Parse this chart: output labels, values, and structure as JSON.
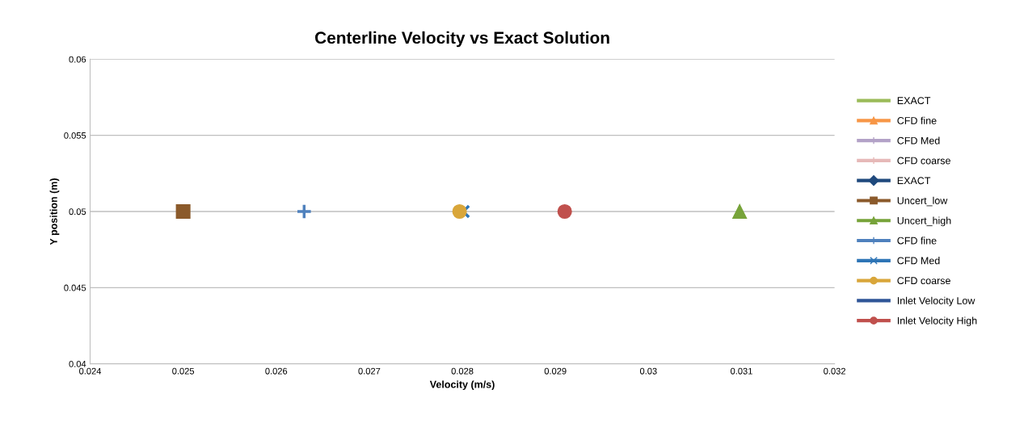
{
  "chart_data": {
    "type": "scatter",
    "title": "Centerline Velocity vs Exact Solution",
    "xlabel": "Velocity (m/s)",
    "ylabel": "Y position (m)",
    "xlim": [
      0.024,
      0.032
    ],
    "xticks": [
      0.024,
      0.025,
      0.026,
      0.027,
      0.028,
      0.029,
      0.03,
      0.031,
      0.032
    ],
    "ylim": [
      0.04,
      0.06
    ],
    "yticks": [
      0.04,
      0.045,
      0.05,
      0.055,
      0.06
    ],
    "grid": "y",
    "legend": "right",
    "series": [
      {
        "name": "EXACT",
        "color": "#9bbb59",
        "marker": "none",
        "x": [
          null
        ],
        "values": [
          null
        ]
      },
      {
        "name": "CFD fine",
        "color": "#f79646",
        "marker": "triangle",
        "x": [
          null
        ],
        "values": [
          null
        ]
      },
      {
        "name": "CFD Med",
        "color": "#b3a2c7",
        "marker": "cross",
        "x": [
          null
        ],
        "values": [
          null
        ]
      },
      {
        "name": "CFD coarse",
        "color": "#e6b9b8",
        "marker": "cross",
        "x": [
          null
        ],
        "values": [
          null
        ]
      },
      {
        "name": "EXACT",
        "color": "#1f497d",
        "marker": "diamond",
        "x": [
          null
        ],
        "values": [
          null
        ]
      },
      {
        "name": "Uncert_low",
        "color": "#8b5a2b",
        "marker": "square",
        "x": [
          0.025
        ],
        "values": [
          0.05
        ]
      },
      {
        "name": "Uncert_high",
        "color": "#77a33a",
        "marker": "triangle",
        "x": [
          0.03098
        ],
        "values": [
          0.05
        ]
      },
      {
        "name": "CFD fine",
        "color": "#4f81bd",
        "marker": "cross",
        "x": [
          0.0263
        ],
        "values": [
          0.05
        ]
      },
      {
        "name": "CFD Med",
        "color": "#2e75b6",
        "marker": "x",
        "x": [
          0.02801
        ],
        "values": [
          0.05
        ]
      },
      {
        "name": "CFD coarse",
        "color": "#d9a63a",
        "marker": "circle",
        "x": [
          0.02797
        ],
        "values": [
          0.05
        ]
      },
      {
        "name": "Inlet Velocity Low",
        "color": "#2f5597",
        "marker": "none",
        "x": [
          null
        ],
        "values": [
          null
        ]
      },
      {
        "name": "Inlet Velocity High",
        "color": "#c0504d",
        "marker": "circle",
        "x": [
          0.0291
        ],
        "values": [
          0.05
        ]
      }
    ]
  }
}
